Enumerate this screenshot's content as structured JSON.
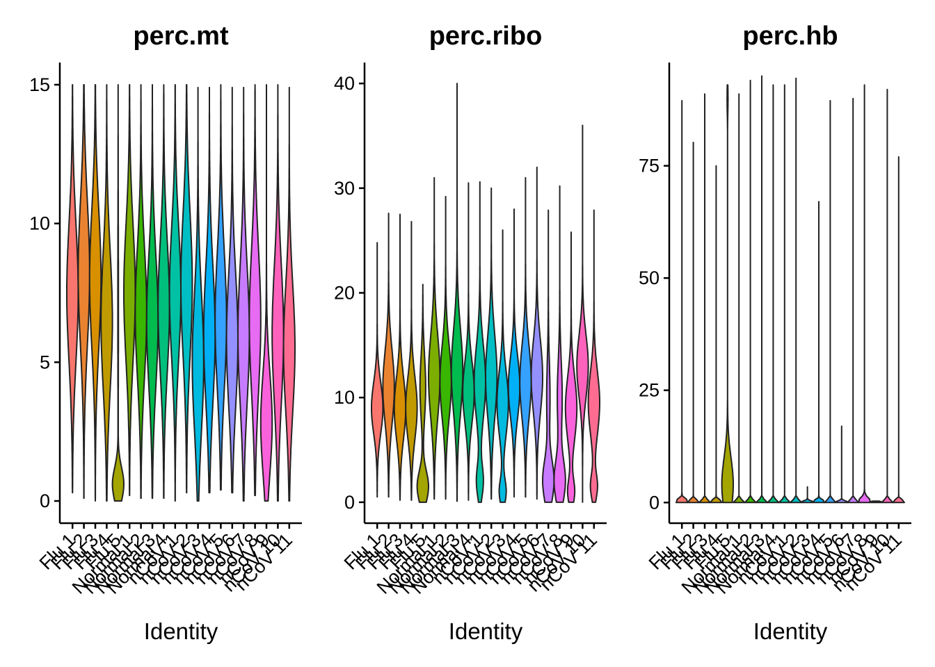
{
  "chart_data": {
    "type": "violin",
    "categories": [
      "Flu 1",
      "Flu 2",
      "Flu 3",
      "Flu 4",
      "Flu 5",
      "Normal 1",
      "Normal 2",
      "Normal 3",
      "Normal 4",
      "nCoV 1",
      "nCoV 2",
      "nCoV 3",
      "nCoV 4",
      "nCoV 5",
      "nCoV 6",
      "nCoV 7",
      "nCoV 8",
      "nCoV 9",
      "nCoV 10",
      "nCoV 11"
    ],
    "colors": [
      "#F8766D",
      "#EA8331",
      "#D89000",
      "#C09B00",
      "#A3A500",
      "#7CAE00",
      "#39B600",
      "#00BB4E",
      "#00BF7D",
      "#00C1A3",
      "#00BFC4",
      "#00BAE0",
      "#00B0F6",
      "#35A2FF",
      "#9590FF",
      "#C77CFF",
      "#E76BF3",
      "#FA62DB",
      "#FF62BC",
      "#FF6C91"
    ],
    "panels": [
      {
        "title": "perc.mt",
        "xlabel": "Identity",
        "ylim": [
          -0.8,
          15.8
        ],
        "yticks": [
          0,
          5,
          10,
          15
        ],
        "series": [
          {
            "min": 0.3,
            "max": 15.0,
            "modes": [
              [
                7.5,
                1.0,
                2.5
              ]
            ]
          },
          {
            "min": 0.1,
            "max": 15.0,
            "modes": [
              [
                8.2,
                1.0,
                2.6
              ]
            ]
          },
          {
            "min": 0.0,
            "max": 15.0,
            "modes": [
              [
                8.0,
                1.0,
                2.5
              ]
            ]
          },
          {
            "min": 0.0,
            "max": 15.0,
            "modes": [
              [
                6.5,
                1.0,
                2.5
              ]
            ]
          },
          {
            "min": 0.0,
            "max": 15.0,
            "modes": [
              [
                0.6,
                1.0,
                0.6
              ],
              [
                7.0,
                0.05,
                3.0
              ]
            ]
          },
          {
            "min": 0.2,
            "max": 15.0,
            "modes": [
              [
                7.5,
                1.0,
                2.5
              ]
            ]
          },
          {
            "min": 0.1,
            "max": 15.0,
            "modes": [
              [
                6.8,
                1.0,
                2.4
              ]
            ]
          },
          {
            "min": 0.1,
            "max": 15.0,
            "modes": [
              [
                6.5,
                1.0,
                2.4
              ]
            ]
          },
          {
            "min": 0.1,
            "max": 15.0,
            "modes": [
              [
                7.0,
                1.0,
                2.4
              ]
            ]
          },
          {
            "min": 0.0,
            "max": 15.0,
            "modes": [
              [
                7.5,
                1.0,
                2.4
              ]
            ]
          },
          {
            "min": 0.3,
            "max": 15.0,
            "modes": [
              [
                7.8,
                1.0,
                2.6
              ]
            ]
          },
          {
            "min": 0.0,
            "max": 14.9,
            "modes": [
              [
                5.0,
                1.0,
                2.5
              ]
            ]
          },
          {
            "min": 0.3,
            "max": 14.9,
            "modes": [
              [
                6.0,
                1.0,
                2.5
              ]
            ]
          },
          {
            "min": 0.4,
            "max": 15.0,
            "modes": [
              [
                6.5,
                1.0,
                2.5
              ]
            ]
          },
          {
            "min": 0.3,
            "max": 14.9,
            "modes": [
              [
                5.8,
                1.0,
                2.4
              ]
            ]
          },
          {
            "min": 0.0,
            "max": 14.9,
            "modes": [
              [
                6.0,
                1.0,
                2.5
              ]
            ]
          },
          {
            "min": 0.2,
            "max": 15.0,
            "modes": [
              [
                6.5,
                1.0,
                2.6
              ]
            ]
          },
          {
            "min": 0.0,
            "max": 15.0,
            "modes": [
              [
                2.8,
                1.0,
                1.8
              ]
            ]
          },
          {
            "min": 0.0,
            "max": 15.0,
            "modes": [
              [
                6.0,
                1.0,
                2.5
              ]
            ]
          },
          {
            "min": 0.0,
            "max": 14.9,
            "modes": [
              [
                5.5,
                1.0,
                2.3
              ]
            ]
          }
        ]
      },
      {
        "title": "perc.ribo",
        "xlabel": "Identity",
        "ylim": [
          -2,
          42
        ],
        "yticks": [
          0,
          10,
          20,
          30,
          40
        ],
        "series": [
          {
            "min": 0.5,
            "max": 24.8,
            "modes": [
              [
                9.0,
                1.0,
                2.5
              ]
            ]
          },
          {
            "min": 0.5,
            "max": 27.6,
            "modes": [
              [
                11.0,
                1.0,
                3.5
              ]
            ]
          },
          {
            "min": 0.2,
            "max": 27.5,
            "modes": [
              [
                9.0,
                1.0,
                3.0
              ]
            ]
          },
          {
            "min": 0.2,
            "max": 26.8,
            "modes": [
              [
                9.0,
                1.0,
                3.0
              ]
            ]
          },
          {
            "min": 0.0,
            "max": 20.8,
            "modes": [
              [
                1.5,
                1.0,
                1.5
              ],
              [
                11.0,
                0.5,
                3.0
              ]
            ]
          },
          {
            "min": 0.3,
            "max": 31.0,
            "modes": [
              [
                12.0,
                1.0,
                4.0
              ]
            ]
          },
          {
            "min": 0.3,
            "max": 29.2,
            "modes": [
              [
                11.5,
                1.0,
                3.5
              ]
            ]
          },
          {
            "min": 0.1,
            "max": 40.0,
            "modes": [
              [
                12.5,
                1.0,
                4.0
              ]
            ]
          },
          {
            "min": 0.2,
            "max": 30.5,
            "modes": [
              [
                10.5,
                1.0,
                3.0
              ]
            ]
          },
          {
            "min": 0.0,
            "max": 30.6,
            "modes": [
              [
                2.0,
                0.6,
                1.5
              ],
              [
                11.5,
                1.0,
                3.5
              ]
            ]
          },
          {
            "min": 0.3,
            "max": 30.0,
            "modes": [
              [
                12.0,
                1.0,
                4.0
              ]
            ]
          },
          {
            "min": 0.0,
            "max": 26.0,
            "modes": [
              [
                1.0,
                0.6,
                1.2
              ],
              [
                9.5,
                1.0,
                3.0
              ]
            ]
          },
          {
            "min": 0.5,
            "max": 28.0,
            "modes": [
              [
                11.0,
                1.0,
                3.0
              ]
            ]
          },
          {
            "min": 0.5,
            "max": 31.0,
            "modes": [
              [
                11.5,
                1.0,
                3.5
              ]
            ]
          },
          {
            "min": 0.3,
            "max": 32.0,
            "modes": [
              [
                12.0,
                1.0,
                3.5
              ]
            ]
          },
          {
            "min": 0.0,
            "max": 27.9,
            "modes": [
              [
                2.0,
                1.0,
                2.0
              ],
              [
                10.0,
                0.3,
                3.5
              ]
            ]
          },
          {
            "min": 0.0,
            "max": 30.2,
            "modes": [
              [
                2.0,
                0.9,
                2.0
              ],
              [
                10.0,
                0.4,
                3.5
              ]
            ]
          },
          {
            "min": 0.0,
            "max": 25.8,
            "modes": [
              [
                1.0,
                0.6,
                1.2
              ],
              [
                9.0,
                1.0,
                3.0
              ]
            ]
          },
          {
            "min": 0.0,
            "max": 36.0,
            "modes": [
              [
                13.0,
                1.0,
                3.0
              ]
            ]
          },
          {
            "min": 0.0,
            "max": 27.9,
            "modes": [
              [
                1.5,
                0.6,
                1.2
              ],
              [
                9.5,
                1.0,
                3.0
              ]
            ]
          }
        ]
      },
      {
        "title": "perc.hb",
        "xlabel": "Identity",
        "ylim": [
          -4.6,
          98
        ],
        "yticks": [
          0,
          25,
          50,
          75
        ],
        "series": [
          {
            "min": 0.0,
            "max": 89.5,
            "modes": [
              [
                0.3,
                1.0,
                0.5
              ]
            ]
          },
          {
            "min": 0.0,
            "max": 80.2,
            "modes": [
              [
                0.2,
                1.0,
                0.4
              ]
            ]
          },
          {
            "min": 0.0,
            "max": 91.0,
            "modes": [
              [
                0.2,
                1.0,
                0.4
              ]
            ]
          },
          {
            "min": 0.0,
            "max": 75.0,
            "modes": [
              [
                0.2,
                1.0,
                0.4
              ]
            ]
          },
          {
            "min": 0.0,
            "max": 93.0,
            "modes": [
              [
                4.0,
                1.0,
                6.0
              ],
              [
                90.0,
                0.08,
                3.0
              ]
            ]
          },
          {
            "min": 0.0,
            "max": 91.0,
            "modes": [
              [
                0.2,
                1.0,
                0.4
              ]
            ]
          },
          {
            "min": 0.0,
            "max": 94.0,
            "modes": [
              [
                0.2,
                1.0,
                0.4
              ]
            ]
          },
          {
            "min": 0.0,
            "max": 95.0,
            "modes": [
              [
                0.2,
                1.0,
                0.4
              ]
            ]
          },
          {
            "min": 0.0,
            "max": 93.0,
            "modes": [
              [
                0.2,
                1.0,
                0.4
              ]
            ]
          },
          {
            "min": 0.0,
            "max": 93.0,
            "modes": [
              [
                0.2,
                1.0,
                0.4
              ]
            ]
          },
          {
            "min": 0.0,
            "max": 94.5,
            "modes": [
              [
                0.2,
                1.0,
                0.4
              ]
            ]
          },
          {
            "min": 0.0,
            "max": 3.5,
            "modes": [
              [
                0.1,
                1.0,
                0.3
              ]
            ]
          },
          {
            "min": 0.0,
            "max": 67.0,
            "modes": [
              [
                0.2,
                1.0,
                0.4
              ]
            ]
          },
          {
            "min": 0.0,
            "max": 89.5,
            "modes": [
              [
                0.2,
                1.0,
                0.4
              ]
            ]
          },
          {
            "min": 0.0,
            "max": 17.0,
            "modes": [
              [
                0.1,
                1.0,
                0.3
              ]
            ]
          },
          {
            "min": 0.0,
            "max": 90.0,
            "modes": [
              [
                0.2,
                1.0,
                0.4
              ]
            ]
          },
          {
            "min": 0.0,
            "max": 93.0,
            "modes": [
              [
                0.3,
                1.0,
                0.8
              ]
            ]
          },
          {
            "min": 0.0,
            "max": 0.3,
            "modes": [
              [
                0.1,
                1.0,
                0.2
              ]
            ]
          },
          {
            "min": 0.0,
            "max": 92.0,
            "modes": [
              [
                0.2,
                1.0,
                0.4
              ]
            ]
          },
          {
            "min": 0.0,
            "max": 77.0,
            "modes": [
              [
                0.2,
                1.0,
                0.4
              ]
            ]
          }
        ]
      }
    ]
  }
}
